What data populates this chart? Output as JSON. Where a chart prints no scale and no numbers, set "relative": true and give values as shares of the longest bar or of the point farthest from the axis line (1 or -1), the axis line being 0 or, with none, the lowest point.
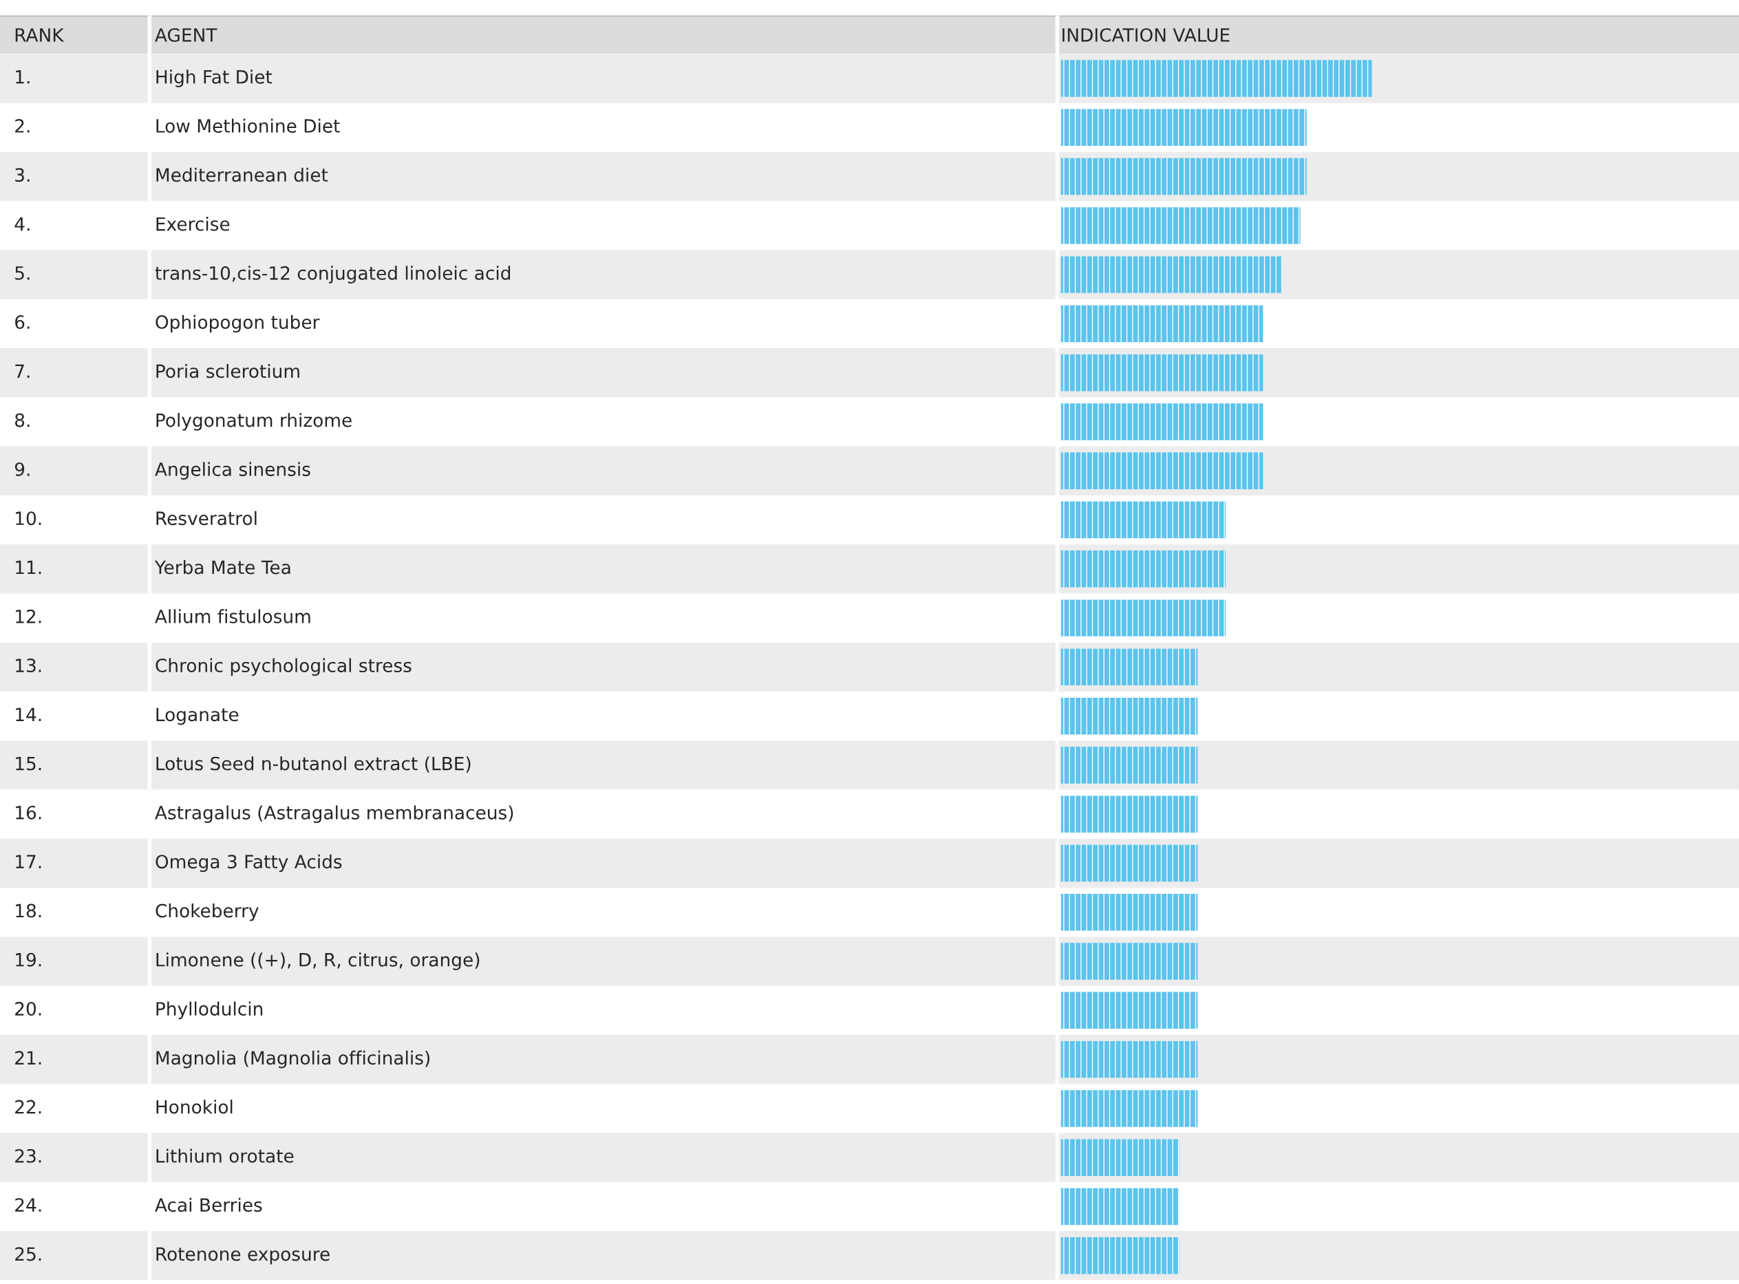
{
  "chart_data": {
    "type": "bar",
    "orientation": "horizontal",
    "relative": true,
    "ylabel": "AGENT",
    "xlabel": "INDICATION VALUE",
    "annotations": [
      "RANK",
      "1.",
      "2.",
      "3.",
      "4.",
      "5.",
      "6.",
      "7.",
      "8.",
      "9.",
      "10.",
      "11.",
      "12.",
      "13.",
      "14.",
      "15.",
      "16.",
      "17.",
      "18.",
      "19.",
      "20.",
      "21.",
      "22.",
      "23.",
      "24.",
      "25."
    ],
    "categories": [
      "High Fat Diet",
      "Low Methionine Diet",
      "Mediterranean diet",
      "Exercise",
      "trans-10,cis-12 conjugated linoleic acid",
      "Ophiopogon tuber",
      "Poria sclerotium",
      "Polygonatum rhizome",
      "Angelica sinensis",
      "Resveratrol",
      "Yerba Mate Tea",
      "Allium fistulosum",
      "Chronic psychological stress",
      "Loganate",
      "Lotus Seed n-butanol extract (LBE)",
      "Astragalus (Astragalus membranaceus)",
      "Omega 3 Fatty Acids",
      "Chokeberry",
      "Limonene ((+), D, R, citrus, orange)",
      "Phyllodulcin",
      "Magnolia (Magnolia officinalis)",
      "Honokiol",
      "Lithium orotate",
      "Acai Berries",
      "Rotenone exposure"
    ],
    "values": [
      1,
      0.79,
      0.79,
      0.77,
      0.71,
      0.65,
      0.65,
      0.65,
      0.65,
      0.53,
      0.53,
      0.53,
      0.44,
      0.44,
      0.44,
      0.44,
      0.44,
      0.44,
      0.44,
      0.44,
      0.44,
      0.44,
      0.38,
      0.38,
      0.38
    ],
    "color": "#5cc3ec"
  }
}
